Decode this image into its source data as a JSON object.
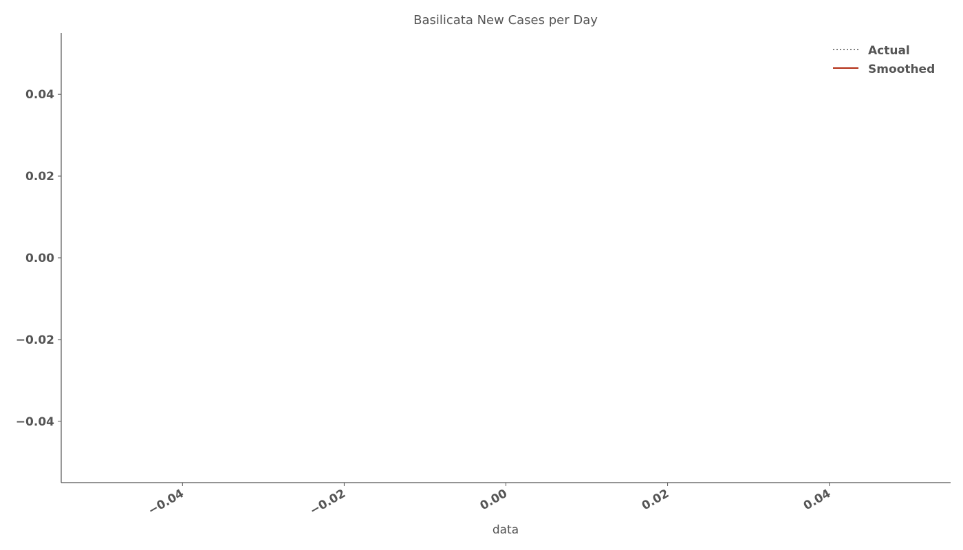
{
  "chart_data": {
    "type": "line",
    "title": "Basilicata New Cases per Day",
    "xlabel": "data",
    "ylabel": "",
    "xlim": [
      -0.055,
      0.055
    ],
    "ylim": [
      -0.055,
      0.055
    ],
    "xticks": [
      -0.04,
      -0.02,
      0.0,
      0.02,
      0.04
    ],
    "xtick_labels": [
      "−0.04",
      "−0.02",
      "0.00",
      "0.02",
      "0.04"
    ],
    "yticks": [
      0.04,
      0.02,
      0.0,
      -0.02,
      -0.04
    ],
    "ytick_labels": [
      "0.04",
      "0.02",
      "0.00",
      "−0.02",
      "−0.04"
    ],
    "grid": false,
    "legend_position": "top-right",
    "series": [
      {
        "name": "Actual",
        "style": "dotted",
        "color": "#555555",
        "x": [],
        "values": []
      },
      {
        "name": "Smoothed",
        "style": "solid",
        "color": "#b22a10",
        "x": [],
        "values": []
      }
    ]
  }
}
